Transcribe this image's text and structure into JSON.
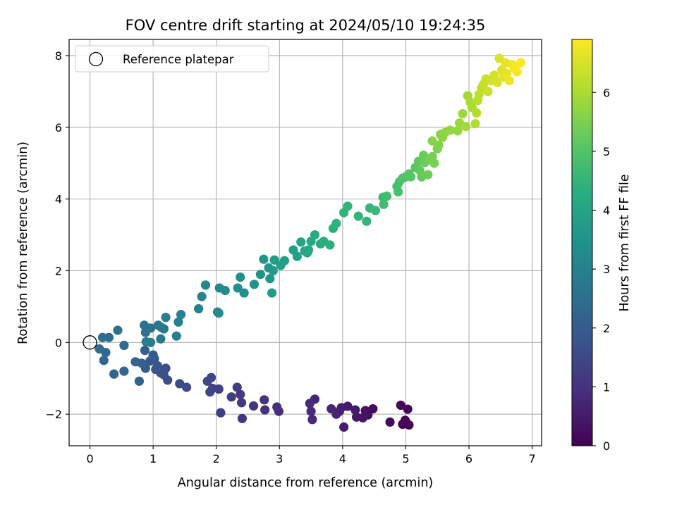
{
  "chart_data": {
    "type": "scatter",
    "title": "FOV centre drift starting at 2024/05/10 19:24:35",
    "xlabel": "Angular distance from reference (arcmin)",
    "ylabel": "Rotation from reference (arcmin)",
    "xlim": [
      -0.33,
      7.15
    ],
    "ylim": [
      -2.88,
      8.45
    ],
    "xticks": [
      0,
      1,
      2,
      3,
      4,
      5,
      6,
      7
    ],
    "yticks": [
      -2,
      0,
      2,
      4,
      6,
      8
    ],
    "grid": true,
    "legend": {
      "placement": "top-left",
      "entries": [
        "Reference platepar"
      ]
    },
    "reference_point": {
      "x": 0,
      "y": 0
    },
    "colorbar": {
      "label": "Hours from first FF file",
      "colormap": "viridis",
      "range": [
        0,
        6.9
      ],
      "ticks": [
        0,
        1,
        2,
        3,
        4,
        5,
        6
      ]
    },
    "points": [
      [
        5.05,
        -2.3
      ],
      [
        4.95,
        -2.28
      ],
      [
        4.99,
        -2.17
      ],
      [
        5.03,
        -1.86
      ],
      [
        4.92,
        -1.75
      ],
      [
        4.75,
        -2.22
      ],
      [
        4.48,
        -1.85
      ],
      [
        4.4,
        -2.02
      ],
      [
        4.36,
        -1.9
      ],
      [
        4.32,
        -2.1
      ],
      [
        4.22,
        -2.08
      ],
      [
        4.2,
        -1.88
      ],
      [
        4.08,
        -1.78
      ],
      [
        4.02,
        -2.36
      ],
      [
        3.98,
        -1.82
      ],
      [
        3.95,
        -1.92
      ],
      [
        3.9,
        -2.0
      ],
      [
        3.82,
        -1.85
      ],
      [
        3.56,
        -1.58
      ],
      [
        3.52,
        -2.15
      ],
      [
        3.5,
        -1.92
      ],
      [
        3.48,
        -1.7
      ],
      [
        2.99,
        -1.92
      ],
      [
        2.96,
        -1.8
      ],
      [
        2.77,
        -1.88
      ],
      [
        2.76,
        -1.6
      ],
      [
        2.59,
        -1.77
      ],
      [
        2.41,
        -2.12
      ],
      [
        2.4,
        -1.68
      ],
      [
        2.38,
        -1.45
      ],
      [
        2.33,
        -1.25
      ],
      [
        2.24,
        -1.52
      ],
      [
        2.07,
        -1.96
      ],
      [
        2.04,
        -1.3
      ],
      [
        1.94,
        -1.28
      ],
      [
        1.92,
        -0.98
      ],
      [
        1.9,
        -1.38
      ],
      [
        1.86,
        -1.08
      ],
      [
        1.53,
        -1.25
      ],
      [
        1.42,
        -1.15
      ],
      [
        1.23,
        -1.05
      ],
      [
        1.2,
        -0.72
      ],
      [
        1.17,
        -0.9
      ],
      [
        1.12,
        -0.85
      ],
      [
        1.07,
        -0.65
      ],
      [
        1.04,
        -0.75
      ],
      [
        1.02,
        -0.45
      ],
      [
        1.0,
        -0.35
      ],
      [
        0.95,
        -0.52
      ],
      [
        0.88,
        -0.72
      ],
      [
        0.87,
        -0.22
      ],
      [
        0.82,
        -0.58
      ],
      [
        0.78,
        -1.08
      ],
      [
        0.72,
        -0.54
      ],
      [
        0.54,
        -0.8
      ],
      [
        0.38,
        -0.88
      ],
      [
        0.22,
        -0.5
      ],
      [
        0.25,
        -0.28
      ],
      [
        0.15,
        -0.18
      ],
      [
        0.54,
        -0.08
      ],
      [
        0.3,
        0.14
      ],
      [
        0.2,
        0.14
      ],
      [
        0.44,
        0.34
      ],
      [
        0.96,
        0.4
      ],
      [
        0.88,
        0.28
      ],
      [
        0.86,
        0.48
      ],
      [
        1.08,
        0.48
      ],
      [
        1.13,
        0.42
      ],
      [
        1.17,
        0.38
      ],
      [
        1.12,
        0.1
      ],
      [
        0.96,
        0.0
      ],
      [
        0.89,
        0.02
      ],
      [
        1.2,
        0.7
      ],
      [
        1.37,
        0.18
      ],
      [
        1.4,
        0.57
      ],
      [
        1.44,
        0.78
      ],
      [
        1.72,
        0.94
      ],
      [
        1.77,
        1.28
      ],
      [
        1.83,
        1.6
      ],
      [
        2.02,
        0.85
      ],
      [
        2.04,
        0.82
      ],
      [
        2.05,
        1.52
      ],
      [
        2.14,
        1.45
      ],
      [
        2.34,
        1.52
      ],
      [
        2.38,
        1.82
      ],
      [
        2.44,
        1.38
      ],
      [
        2.6,
        1.62
      ],
      [
        2.7,
        1.9
      ],
      [
        2.75,
        2.32
      ],
      [
        2.83,
        2.08
      ],
      [
        2.85,
        1.78
      ],
      [
        2.88,
        1.38
      ],
      [
        2.9,
        2.0
      ],
      [
        2.92,
        2.3
      ],
      [
        3.02,
        2.15
      ],
      [
        3.08,
        2.28
      ],
      [
        3.22,
        2.58
      ],
      [
        3.28,
        2.4
      ],
      [
        3.34,
        2.8
      ],
      [
        3.4,
        2.55
      ],
      [
        3.44,
        2.5
      ],
      [
        3.46,
        2.58
      ],
      [
        3.5,
        2.82
      ],
      [
        3.56,
        3.0
      ],
      [
        3.65,
        2.75
      ],
      [
        3.7,
        2.82
      ],
      [
        3.8,
        2.72
      ],
      [
        3.85,
        3.18
      ],
      [
        3.9,
        3.32
      ],
      [
        4.02,
        3.62
      ],
      [
        4.08,
        3.8
      ],
      [
        4.25,
        3.52
      ],
      [
        4.38,
        3.38
      ],
      [
        4.43,
        3.75
      ],
      [
        4.52,
        3.68
      ],
      [
        4.64,
        4.05
      ],
      [
        4.65,
        3.85
      ],
      [
        4.7,
        4.08
      ],
      [
        4.86,
        4.35
      ],
      [
        4.88,
        4.2
      ],
      [
        4.9,
        4.48
      ],
      [
        4.95,
        4.58
      ],
      [
        5.0,
        4.62
      ],
      [
        5.05,
        4.7
      ],
      [
        5.08,
        4.62
      ],
      [
        5.15,
        4.88
      ],
      [
        5.2,
        5.05
      ],
      [
        5.22,
        4.8
      ],
      [
        5.25,
        4.62
      ],
      [
        5.28,
        5.22
      ],
      [
        5.3,
        5.02
      ],
      [
        5.35,
        4.68
      ],
      [
        5.38,
        5.1
      ],
      [
        5.42,
        5.18
      ],
      [
        5.45,
        5.0
      ],
      [
        5.5,
        5.4
      ],
      [
        5.52,
        5.5
      ],
      [
        5.55,
        5.8
      ],
      [
        5.42,
        5.62
      ],
      [
        5.58,
        5.72
      ],
      [
        5.62,
        5.85
      ],
      [
        5.7,
        5.92
      ],
      [
        5.82,
        5.9
      ],
      [
        5.85,
        6.12
      ],
      [
        5.9,
        6.38
      ],
      [
        5.95,
        6.02
      ],
      [
        5.98,
        6.88
      ],
      [
        6.02,
        6.7
      ],
      [
        6.05,
        6.55
      ],
      [
        6.1,
        6.1
      ],
      [
        6.12,
        6.4
      ],
      [
        6.14,
        6.75
      ],
      [
        6.16,
        6.92
      ],
      [
        6.2,
        7.1
      ],
      [
        6.23,
        7.2
      ],
      [
        6.27,
        7.35
      ],
      [
        6.3,
        7.0
      ],
      [
        6.35,
        7.3
      ],
      [
        6.4,
        7.45
      ],
      [
        6.45,
        7.25
      ],
      [
        6.48,
        7.92
      ],
      [
        6.52,
        7.6
      ],
      [
        6.55,
        7.4
      ],
      [
        6.58,
        7.8
      ],
      [
        6.6,
        7.5
      ],
      [
        6.64,
        7.3
      ],
      [
        6.68,
        7.75
      ],
      [
        6.72,
        7.65
      ],
      [
        6.76,
        7.55
      ],
      [
        6.82,
        7.8
      ]
    ]
  }
}
